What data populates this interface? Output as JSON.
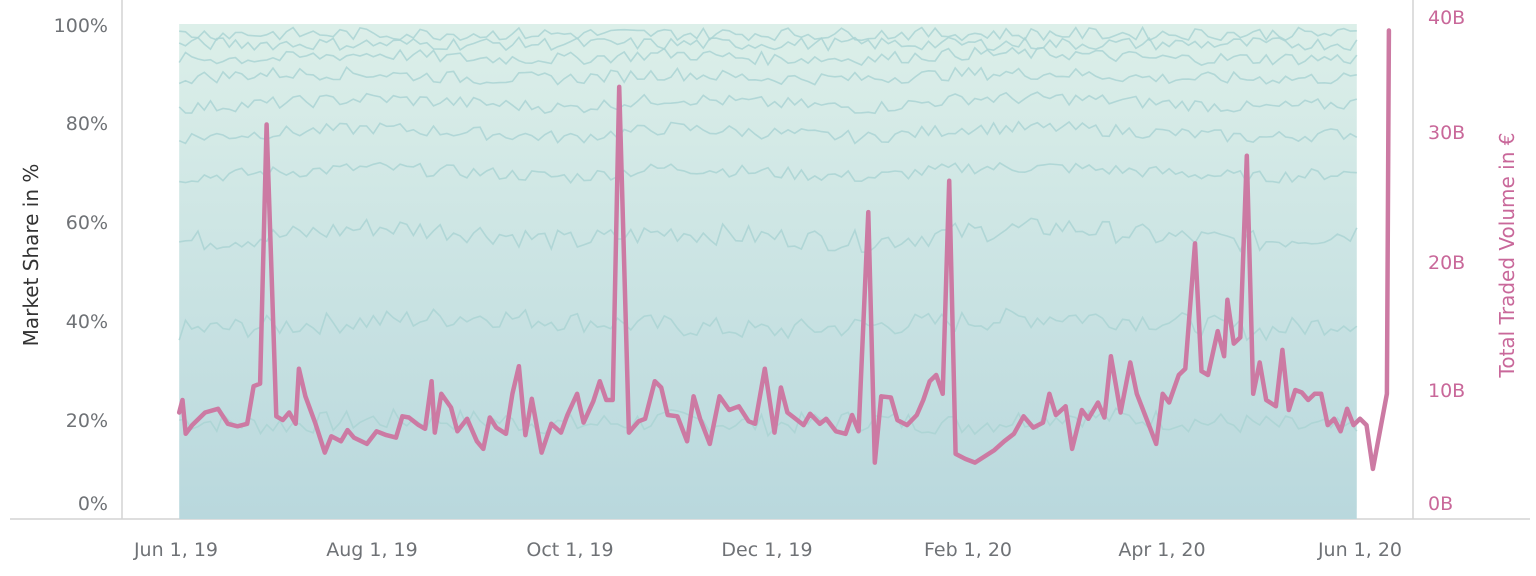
{
  "chart_data": {
    "type": "area",
    "title": "",
    "secondary_type": "line",
    "y_left_label": "Market Share in %",
    "y_right_label": "Total Traded Volume in €",
    "x_ticks": [
      "Jun 1, 19",
      "Aug 1, 19",
      "Oct 1, 19",
      "Dec 1, 19",
      "Feb 1, 20",
      "Apr 1, 20",
      "Jun 1, 20"
    ],
    "x_range": [
      "2019-05-31",
      "2020-06-05"
    ],
    "y_left_ticks": [
      "0%",
      "20%",
      "40%",
      "60%",
      "80%",
      "100%"
    ],
    "y_left_range": [
      0,
      100
    ],
    "y_right_ticks": [
      "0B",
      "10B",
      "20B",
      "30B",
      "40B"
    ],
    "y_right_range": [
      0,
      40
    ],
    "grid": false,
    "colors": {
      "area_bottom": "#bcdbe0",
      "area_top": "#daeee9",
      "band_line": "#aad4d3",
      "volume_line": "#cc7aa3",
      "right_axis_text": "#c9689a"
    },
    "market_share_bands": {
      "x_dates": [
        "2019-06-02",
        "2019-07-01",
        "2019-08-01",
        "2019-09-01",
        "2019-10-01",
        "2019-11-01",
        "2019-12-01",
        "2020-01-01",
        "2020-02-01",
        "2020-03-01",
        "2020-04-01",
        "2020-05-01",
        "2020-05-31"
      ],
      "series": [
        {
          "values": [
            20,
            19,
            20,
            20,
            19,
            20,
            19,
            20,
            19,
            21,
            20,
            19,
            18
          ]
        },
        {
          "values": [
            38,
            39,
            40,
            41,
            40,
            39,
            38,
            39,
            40,
            41,
            40,
            38,
            40
          ]
        },
        {
          "values": [
            56,
            57,
            59,
            58,
            56,
            58,
            57,
            56,
            58,
            59,
            57,
            56,
            58
          ]
        },
        {
          "values": [
            69,
            70,
            71,
            70,
            69,
            71,
            70,
            69,
            71,
            71,
            70,
            69,
            70
          ]
        },
        {
          "values": [
            77,
            78,
            79,
            78,
            77,
            79,
            78,
            77,
            79,
            79,
            78,
            77,
            78
          ]
        },
        {
          "values": [
            83,
            84,
            85,
            84,
            83,
            85,
            84,
            83,
            85,
            85,
            84,
            83,
            84
          ]
        },
        {
          "values": [
            89,
            90,
            90,
            89,
            89,
            90,
            89,
            89,
            90,
            90,
            89,
            89,
            89
          ]
        },
        {
          "values": [
            93,
            93,
            94,
            93,
            93,
            94,
            93,
            93,
            94,
            94,
            93,
            93,
            93
          ]
        },
        {
          "values": [
            96,
            96,
            96,
            96,
            96,
            96,
            96,
            96,
            96,
            96,
            96,
            96,
            96
          ]
        },
        {
          "values": [
            98,
            98,
            98,
            98,
            98,
            98,
            98,
            98,
            98,
            98,
            98,
            98,
            98
          ]
        },
        {
          "values": [
            100,
            100,
            100,
            100,
            100,
            100,
            100,
            100,
            100,
            100,
            100,
            100,
            100
          ]
        }
      ]
    },
    "traded_volume": {
      "unit": "B €",
      "points": [
        [
          "2019-06-02",
          8.5
        ],
        [
          "2019-06-03",
          9.5
        ],
        [
          "2019-06-04",
          6.8
        ],
        [
          "2019-06-06",
          7.5
        ],
        [
          "2019-06-10",
          8.5
        ],
        [
          "2019-06-14",
          8.8
        ],
        [
          "2019-06-17",
          7.6
        ],
        [
          "2019-06-20",
          7.4
        ],
        [
          "2019-06-23",
          7.6
        ],
        [
          "2019-06-25",
          10.6
        ],
        [
          "2019-06-27",
          10.8
        ],
        [
          "2019-06-29",
          31.5
        ],
        [
          "2019-07-02",
          8.2
        ],
        [
          "2019-07-04",
          7.9
        ],
        [
          "2019-07-06",
          8.5
        ],
        [
          "2019-07-08",
          7.6
        ],
        [
          "2019-07-09",
          12.0
        ],
        [
          "2019-07-11",
          9.8
        ],
        [
          "2019-07-14",
          7.7
        ],
        [
          "2019-07-17",
          5.3
        ],
        [
          "2019-07-19",
          6.6
        ],
        [
          "2019-07-22",
          6.2
        ],
        [
          "2019-07-24",
          7.1
        ],
        [
          "2019-07-26",
          6.5
        ],
        [
          "2019-07-30",
          6.0
        ],
        [
          "2019-08-02",
          7.0
        ],
        [
          "2019-08-05",
          6.7
        ],
        [
          "2019-08-08",
          6.5
        ],
        [
          "2019-08-10",
          8.2
        ],
        [
          "2019-08-12",
          8.1
        ],
        [
          "2019-08-15",
          7.5
        ],
        [
          "2019-08-17",
          7.2
        ],
        [
          "2019-08-19",
          11.0
        ],
        [
          "2019-08-20",
          6.9
        ],
        [
          "2019-08-22",
          10.0
        ],
        [
          "2019-08-25",
          8.9
        ],
        [
          "2019-08-27",
          7.0
        ],
        [
          "2019-08-30",
          8.0
        ],
        [
          "2019-09-02",
          6.2
        ],
        [
          "2019-09-04",
          5.6
        ],
        [
          "2019-09-06",
          8.1
        ],
        [
          "2019-09-08",
          7.3
        ],
        [
          "2019-09-11",
          6.8
        ],
        [
          "2019-09-13",
          10.0
        ],
        [
          "2019-09-15",
          12.2
        ],
        [
          "2019-09-17",
          6.7
        ],
        [
          "2019-09-19",
          9.6
        ],
        [
          "2019-09-22",
          5.3
        ],
        [
          "2019-09-25",
          7.6
        ],
        [
          "2019-09-28",
          6.9
        ],
        [
          "2019-09-30",
          8.3
        ],
        [
          "2019-10-03",
          10.0
        ],
        [
          "2019-10-05",
          7.7
        ],
        [
          "2019-10-08",
          9.4
        ],
        [
          "2019-10-10",
          11.0
        ],
        [
          "2019-10-12",
          9.5
        ],
        [
          "2019-10-14",
          9.5
        ],
        [
          "2019-10-16",
          34.5
        ],
        [
          "2019-10-19",
          6.9
        ],
        [
          "2019-10-22",
          7.8
        ],
        [
          "2019-10-24",
          8.0
        ],
        [
          "2019-10-27",
          11.0
        ],
        [
          "2019-10-29",
          10.5
        ],
        [
          "2019-10-31",
          8.3
        ],
        [
          "2019-11-03",
          8.2
        ],
        [
          "2019-11-06",
          6.2
        ],
        [
          "2019-11-08",
          9.8
        ],
        [
          "2019-11-10",
          8.0
        ],
        [
          "2019-11-13",
          6.0
        ],
        [
          "2019-11-16",
          9.8
        ],
        [
          "2019-11-19",
          8.7
        ],
        [
          "2019-11-22",
          9.0
        ],
        [
          "2019-11-25",
          7.8
        ],
        [
          "2019-11-27",
          7.6
        ],
        [
          "2019-11-30",
          12.0
        ],
        [
          "2019-12-03",
          6.9
        ],
        [
          "2019-12-05",
          10.5
        ],
        [
          "2019-12-07",
          8.5
        ],
        [
          "2019-12-09",
          8.1
        ],
        [
          "2019-12-12",
          7.5
        ],
        [
          "2019-12-14",
          8.4
        ],
        [
          "2019-12-17",
          7.6
        ],
        [
          "2019-12-19",
          8.0
        ],
        [
          "2019-12-22",
          7.0
        ],
        [
          "2019-12-25",
          6.8
        ],
        [
          "2019-12-27",
          8.3
        ],
        [
          "2019-12-29",
          7.0
        ],
        [
          "2020-01-01",
          24.5
        ],
        [
          "2020-01-03",
          4.5
        ],
        [
          "2020-01-05",
          9.8
        ],
        [
          "2020-01-08",
          9.7
        ],
        [
          "2020-01-10",
          7.9
        ],
        [
          "2020-01-13",
          7.5
        ],
        [
          "2020-01-16",
          8.3
        ],
        [
          "2020-01-18",
          9.5
        ],
        [
          "2020-01-20",
          11.0
        ],
        [
          "2020-01-22",
          11.5
        ],
        [
          "2020-01-24",
          10.0
        ],
        [
          "2020-01-26",
          27.0
        ],
        [
          "2020-01-28",
          5.2
        ],
        [
          "2020-01-31",
          4.8
        ],
        [
          "2020-02-03",
          4.5
        ],
        [
          "2020-02-06",
          5.0
        ],
        [
          "2020-02-09",
          5.5
        ],
        [
          "2020-02-12",
          6.2
        ],
        [
          "2020-02-15",
          6.8
        ],
        [
          "2020-02-18",
          8.2
        ],
        [
          "2020-02-21",
          7.3
        ],
        [
          "2020-02-24",
          7.7
        ],
        [
          "2020-02-26",
          10.0
        ],
        [
          "2020-02-28",
          8.3
        ],
        [
          "2020-03-02",
          9.0
        ],
        [
          "2020-03-04",
          5.6
        ],
        [
          "2020-03-07",
          8.7
        ],
        [
          "2020-03-09",
          8.0
        ],
        [
          "2020-03-12",
          9.3
        ],
        [
          "2020-03-14",
          8.1
        ],
        [
          "2020-03-16",
          13.0
        ],
        [
          "2020-03-19",
          8.5
        ],
        [
          "2020-03-22",
          12.5
        ],
        [
          "2020-03-24",
          10.0
        ],
        [
          "2020-03-27",
          8.0
        ],
        [
          "2020-03-30",
          6.0
        ],
        [
          "2020-04-01",
          10.0
        ],
        [
          "2020-04-03",
          9.3
        ],
        [
          "2020-04-06",
          11.5
        ],
        [
          "2020-04-08",
          12.0
        ],
        [
          "2020-04-11",
          22.0
        ],
        [
          "2020-04-13",
          11.8
        ],
        [
          "2020-04-15",
          11.5
        ],
        [
          "2020-04-18",
          15.0
        ],
        [
          "2020-04-20",
          13.0
        ],
        [
          "2020-04-21",
          17.5
        ],
        [
          "2020-04-23",
          14.0
        ],
        [
          "2020-04-25",
          14.5
        ],
        [
          "2020-04-27",
          29.0
        ],
        [
          "2020-04-29",
          10.0
        ],
        [
          "2020-05-01",
          12.5
        ],
        [
          "2020-05-03",
          9.5
        ],
        [
          "2020-05-06",
          9.0
        ],
        [
          "2020-05-08",
          13.5
        ],
        [
          "2020-05-10",
          8.7
        ],
        [
          "2020-05-12",
          10.3
        ],
        [
          "2020-05-14",
          10.1
        ],
        [
          "2020-05-16",
          9.5
        ],
        [
          "2020-05-18",
          10.0
        ],
        [
          "2020-05-20",
          10.0
        ],
        [
          "2020-05-22",
          7.5
        ],
        [
          "2020-05-24",
          8.0
        ],
        [
          "2020-05-26",
          7.0
        ],
        [
          "2020-05-28",
          8.8
        ],
        [
          "2020-05-30",
          7.5
        ],
        [
          "2020-06-01",
          8.0
        ],
        [
          "2020-06-03",
          7.5
        ],
        [
          "2020-06-05",
          4.0
        ]
      ]
    }
  }
}
